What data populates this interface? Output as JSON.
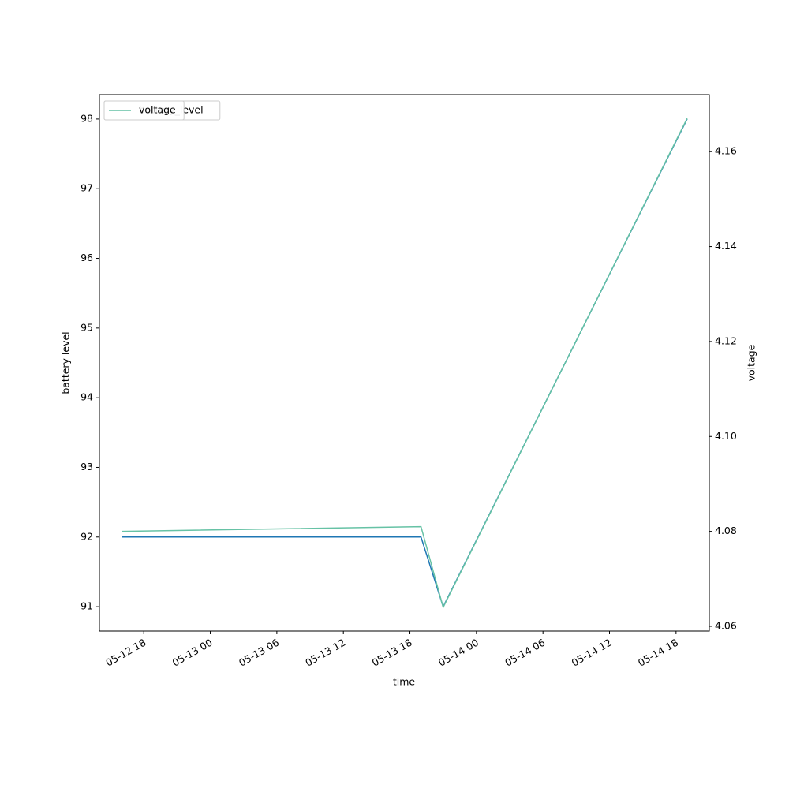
{
  "chart_data": {
    "type": "line",
    "x_label": "time",
    "y_label": "battery level",
    "y2_label": "voltage",
    "x": [
      "05-12 16",
      "05-13 19",
      "05-13 21",
      "05-14 19"
    ],
    "xlim": [
      "05-12 14",
      "05-14 21"
    ],
    "xticks": [
      "05-12 18",
      "05-13 00",
      "05-13 06",
      "05-13 12",
      "05-13 18",
      "05-14 00",
      "05-14 06",
      "05-14 12",
      "05-14 18"
    ],
    "ylim": [
      90.65,
      98.35
    ],
    "yticks": [
      91,
      92,
      93,
      94,
      95,
      96,
      97,
      98
    ],
    "y2lim": [
      4.059,
      4.172
    ],
    "y2ticks": [
      4.06,
      4.08,
      4.1,
      4.12,
      4.14,
      4.16
    ],
    "series": [
      {
        "name": "battery_level",
        "color": "#1f77b4",
        "values": [
          92,
          92,
          91,
          98
        ]
      },
      {
        "name": "voltage",
        "color": "#66c2a5",
        "axis": "y2",
        "values": [
          4.08,
          4.081,
          4.064,
          4.167
        ]
      }
    ],
    "legend": "upper left",
    "grid": false
  }
}
